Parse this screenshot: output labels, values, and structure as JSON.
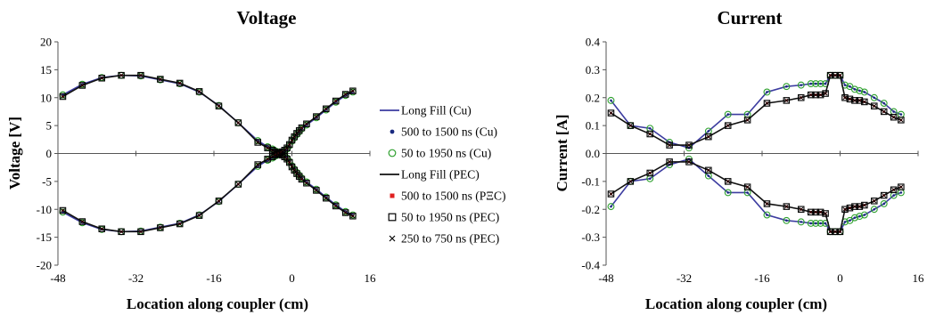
{
  "legend": {
    "entries": [
      {
        "label": "Long Fill (Cu)",
        "marker": "line",
        "color": "#3c3ca0"
      },
      {
        "label": "500 to 1500 ns (Cu)",
        "marker": "dot",
        "color": "#1a2a80"
      },
      {
        "label": "50 to 1950 ns (Cu)",
        "marker": "circle",
        "color": "#2ea02e"
      },
      {
        "label": "Long Fill (PEC)",
        "marker": "line",
        "color": "#111111"
      },
      {
        "label": "500 to 1500 ns (PΞC)",
        "marker": "redsquare",
        "color": "#e02020"
      },
      {
        "label": "50 to 1950 ns (PEC)",
        "marker": "square",
        "color": "#000000"
      },
      {
        "label": "250 to 750 ns (PEC)",
        "marker": "cross",
        "color": "#000000"
      }
    ]
  },
  "chart_data": [
    {
      "type": "line",
      "title": "Voltage",
      "xlabel": "Location along coupler (cm)",
      "ylabel": "Voltage [V]",
      "xlim": [
        -48,
        16
      ],
      "ylim": [
        -20,
        20
      ],
      "xticks": [
        -48,
        -32,
        -16,
        0,
        16
      ],
      "yticks": [
        -20,
        -15,
        -10,
        -5,
        0,
        5,
        10,
        15,
        20
      ],
      "grid": false,
      "series": [
        {
          "name": "Long Fill (Cu)",
          "color": "#3c3ca0",
          "markers": [
            "circle"
          ],
          "x": [
            -47,
            -43,
            -39,
            -35,
            -31,
            -27,
            -23,
            -19,
            -15,
            -11,
            -7,
            -5,
            -4,
            -3.5,
            -3,
            -2.5,
            -2,
            -1.5,
            -1,
            -0.5,
            0,
            0.5,
            1,
            1.5,
            2,
            3,
            5,
            7,
            9,
            11,
            12.5
          ],
          "y": [
            10.5,
            12.4,
            13.6,
            14.0,
            13.9,
            13.2,
            12.5,
            11.0,
            8.6,
            5.5,
            2.3,
            1.2,
            0.8,
            0.5,
            0.3,
            0.1,
            -0.1,
            -0.4,
            -0.8,
            -1.4,
            -2.2,
            -2.8,
            -3.4,
            -3.9,
            -4.4,
            -5.1,
            -6.4,
            -7.8,
            -9.2,
            -10.4,
            -11.0
          ]
        },
        {
          "name": "Long Fill (Cu)",
          "color": "#3c3ca0",
          "markers": [
            "circle"
          ],
          "x": [
            -47,
            -43,
            -39,
            -35,
            -31,
            -27,
            -23,
            -19,
            -15,
            -11,
            -7,
            -5,
            -4,
            -3.5,
            -3,
            -2.5,
            -2,
            -1.5,
            -1,
            -0.5,
            0,
            0.5,
            1,
            1.5,
            2,
            3,
            5,
            7,
            9,
            11,
            12.5
          ],
          "y": [
            -10.5,
            -12.4,
            -13.6,
            -14.0,
            -13.9,
            -13.2,
            -12.5,
            -11.0,
            -8.6,
            -5.5,
            -2.3,
            -1.2,
            -0.8,
            -0.5,
            -0.3,
            -0.1,
            0.1,
            0.4,
            0.8,
            1.4,
            2.2,
            2.8,
            3.4,
            3.9,
            4.4,
            5.1,
            6.4,
            7.8,
            9.2,
            10.4,
            11.0
          ]
        },
        {
          "name": "Long Fill (PEC)",
          "color": "#111111",
          "markers": [
            "square",
            "cross"
          ],
          "x": [
            -47,
            -43,
            -39,
            -35,
            -31,
            -27,
            -23,
            -19,
            -15,
            -11,
            -7,
            -5,
            -4,
            -3.5,
            -3,
            -2.5,
            -2,
            -1.5,
            -1,
            -0.5,
            0,
            0.5,
            1,
            1.5,
            2,
            3,
            5,
            7,
            9,
            11,
            12.5
          ],
          "y": [
            10.2,
            12.2,
            13.5,
            14.0,
            14.0,
            13.3,
            12.6,
            11.1,
            8.5,
            5.5,
            2.0,
            1.0,
            0.6,
            0.3,
            0.1,
            -0.1,
            -0.3,
            -0.6,
            -1.0,
            -1.6,
            -2.4,
            -3.0,
            -3.6,
            -4.1,
            -4.6,
            -5.3,
            -6.6,
            -8.0,
            -9.4,
            -10.6,
            -11.2
          ]
        },
        {
          "name": "Long Fill (PEC)",
          "color": "#111111",
          "markers": [
            "square",
            "cross"
          ],
          "x": [
            -47,
            -43,
            -39,
            -35,
            -31,
            -27,
            -23,
            -19,
            -15,
            -11,
            -7,
            -5,
            -4,
            -3.5,
            -3,
            -2.5,
            -2,
            -1.5,
            -1,
            -0.5,
            0,
            0.5,
            1,
            1.5,
            2,
            3,
            5,
            7,
            9,
            11,
            12.5
          ],
          "y": [
            -10.2,
            -12.2,
            -13.5,
            -14.0,
            -14.0,
            -13.3,
            -12.6,
            -11.1,
            -8.5,
            -5.5,
            -2.0,
            -1.0,
            -0.6,
            -0.3,
            -0.1,
            0.1,
            0.3,
            0.6,
            1.0,
            1.6,
            2.4,
            3.0,
            3.6,
            4.1,
            4.6,
            5.3,
            6.6,
            8.0,
            9.4,
            10.6,
            11.2
          ]
        }
      ]
    },
    {
      "type": "line",
      "title": "Current",
      "xlabel": "Location along coupler (cm)",
      "ylabel": "Current [A]",
      "xlim": [
        -48,
        16
      ],
      "ylim": [
        -0.4,
        0.4
      ],
      "xticks": [
        -48,
        -32,
        -16,
        0,
        16
      ],
      "yticks": [
        -0.4,
        -0.3,
        -0.2,
        -0.1,
        0,
        0.1,
        0.2,
        0.3,
        0.4
      ],
      "grid": false,
      "series": [
        {
          "name": "Long Fill (Cu)",
          "color": "#3c3ca0",
          "markers": [
            "circle"
          ],
          "x": [
            -47,
            -43,
            -39,
            -35,
            -31,
            -27,
            -23,
            -19,
            -15,
            -11,
            -8,
            -6,
            -5,
            -4,
            -3,
            -2,
            -1,
            0,
            1,
            2,
            3,
            4,
            5,
            7,
            9,
            11,
            12.5
          ],
          "y": [
            0.19,
            0.1,
            0.09,
            0.04,
            0.02,
            0.08,
            0.14,
            0.14,
            0.22,
            0.24,
            0.245,
            0.25,
            0.25,
            0.25,
            0.25,
            0.28,
            0.28,
            0.28,
            0.245,
            0.24,
            0.23,
            0.225,
            0.22,
            0.2,
            0.18,
            0.15,
            0.14
          ]
        },
        {
          "name": "Long Fill (Cu)",
          "color": "#3c3ca0",
          "markers": [
            "circle"
          ],
          "x": [
            -47,
            -43,
            -39,
            -35,
            -31,
            -27,
            -23,
            -19,
            -15,
            -11,
            -8,
            -6,
            -5,
            -4,
            -3,
            -2,
            -1,
            0,
            1,
            2,
            3,
            4,
            5,
            7,
            9,
            11,
            12.5
          ],
          "y": [
            -0.19,
            -0.1,
            -0.09,
            -0.04,
            -0.02,
            -0.08,
            -0.14,
            -0.14,
            -0.22,
            -0.24,
            -0.245,
            -0.25,
            -0.25,
            -0.25,
            -0.25,
            -0.28,
            -0.28,
            -0.28,
            -0.245,
            -0.24,
            -0.23,
            -0.225,
            -0.22,
            -0.2,
            -0.18,
            -0.15,
            -0.14
          ]
        },
        {
          "name": "Long Fill (PEC)",
          "color": "#111111",
          "markers": [
            "square",
            "cross"
          ],
          "x": [
            -47,
            -43,
            -39,
            -35,
            -31,
            -27,
            -23,
            -19,
            -15,
            -11,
            -8,
            -6,
            -5,
            -4,
            -3,
            -2,
            -1,
            0,
            1,
            2,
            3,
            4,
            5,
            7,
            9,
            11,
            12.5
          ],
          "y": [
            0.145,
            0.1,
            0.07,
            0.03,
            0.03,
            0.06,
            0.1,
            0.12,
            0.18,
            0.19,
            0.2,
            0.21,
            0.21,
            0.21,
            0.215,
            0.28,
            0.28,
            0.28,
            0.2,
            0.195,
            0.19,
            0.19,
            0.185,
            0.17,
            0.15,
            0.13,
            0.12
          ]
        },
        {
          "name": "Long Fill (PEC)",
          "color": "#111111",
          "markers": [
            "square",
            "cross"
          ],
          "x": [
            -47,
            -43,
            -39,
            -35,
            -31,
            -27,
            -23,
            -19,
            -15,
            -11,
            -8,
            -6,
            -5,
            -4,
            -3,
            -2,
            -1,
            0,
            1,
            2,
            3,
            4,
            5,
            7,
            9,
            11,
            12.5
          ],
          "y": [
            -0.145,
            -0.1,
            -0.07,
            -0.03,
            -0.03,
            -0.06,
            -0.1,
            -0.12,
            -0.18,
            -0.19,
            -0.2,
            -0.21,
            -0.21,
            -0.21,
            -0.215,
            -0.28,
            -0.28,
            -0.28,
            -0.2,
            -0.195,
            -0.19,
            -0.19,
            -0.185,
            -0.17,
            -0.15,
            -0.13,
            -0.12
          ]
        }
      ]
    }
  ]
}
